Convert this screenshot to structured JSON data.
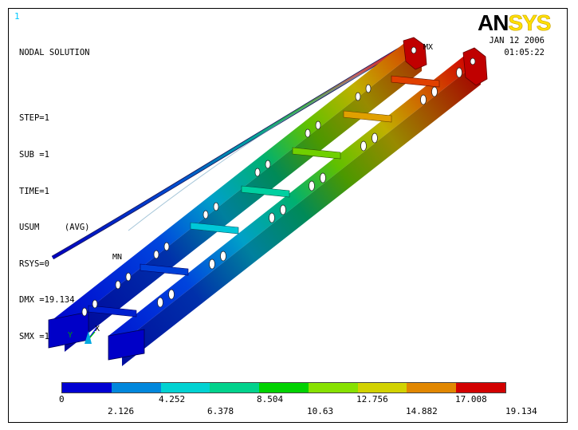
{
  "window_number": "1",
  "info": {
    "line1": "NODAL SOLUTION",
    "line2": "STEP=1",
    "line3": "SUB =1",
    "line4": "TIME=1",
    "line5": "USUM     (AVG)",
    "line6": "RSYS=0",
    "line7": "DMX =19.134",
    "line8": "SMX =19.134"
  },
  "logo": {
    "an": "AN",
    "sys": "SYS"
  },
  "date": {
    "day": "JAN 12 2006",
    "time": "01:05:22"
  },
  "labels": {
    "mx": "MX",
    "mn": "MN",
    "x_axis": "X",
    "y_axis": "Y"
  },
  "legend": {
    "colors": [
      "#0000d2",
      "#0087dc",
      "#00d2d2",
      "#00d28c",
      "#00d200",
      "#87e100",
      "#d2d200",
      "#e18700",
      "#d20000"
    ],
    "top_labels": [
      "0",
      "4.252",
      "8.504",
      "12.756",
      "17.008"
    ],
    "bottom_labels": [
      "2.126",
      "6.378",
      "10.63",
      "14.882",
      "19.134"
    ]
  }
}
